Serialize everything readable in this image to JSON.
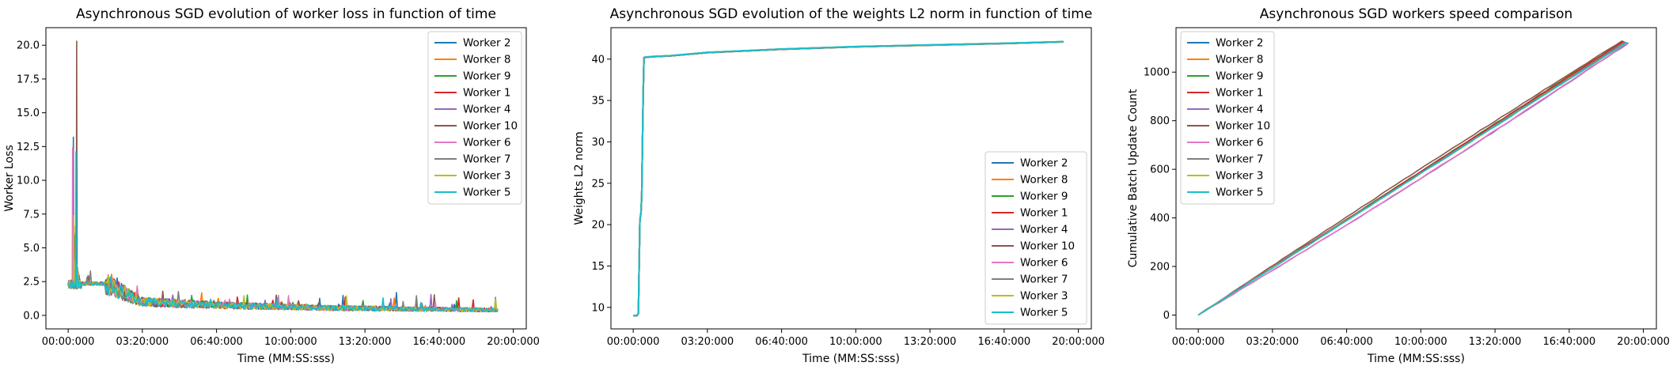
{
  "chart_data": [
    {
      "type": "line",
      "title": "Asynchronous SGD evolution of worker loss in function of time",
      "xlabel": "Time (MM:SS:sss)",
      "ylabel": "Worker Loss",
      "x_ticks": [
        "00:00:000",
        "03:20:000",
        "06:40:000",
        "10:00:000",
        "13:20:000",
        "16:40:000",
        "20:00:000"
      ],
      "y_ticks": [
        "0.0",
        "2.5",
        "5.0",
        "7.5",
        "10.0",
        "12.5",
        "15.0",
        "17.5",
        "20.0"
      ],
      "xlim": [
        -60,
        1235
      ],
      "ylim": [
        -1.0,
        21.3
      ],
      "legend": "top-right",
      "series": [
        {
          "name": "Worker 2",
          "color": "#1f77b4",
          "peak": 13.2,
          "peak_t": 14
        },
        {
          "name": "Worker 8",
          "color": "#ff7f0e",
          "peak": 6.6,
          "peak_t": 16
        },
        {
          "name": "Worker 9",
          "color": "#2ca02c",
          "peak": 5.9,
          "peak_t": 17
        },
        {
          "name": "Worker 1",
          "color": "#d62728",
          "peak": 5.2,
          "peak_t": 18
        },
        {
          "name": "Worker 4",
          "color": "#9467bd",
          "peak": 4.8,
          "peak_t": 19
        },
        {
          "name": "Worker 10",
          "color": "#8c564b",
          "peak": 20.3,
          "peak_t": 23
        },
        {
          "name": "Worker 6",
          "color": "#e377c2",
          "peak": 12.4,
          "peak_t": 12
        },
        {
          "name": "Worker 7",
          "color": "#7f7f7f",
          "peak": 6.1,
          "peak_t": 20
        },
        {
          "name": "Worker 3",
          "color": "#bcbd22",
          "peak": 7.4,
          "peak_t": 15
        },
        {
          "name": "Worker 5",
          "color": "#17becf",
          "peak": 12.1,
          "peak_t": 21
        }
      ],
      "curve": {
        "t_end": 1160,
        "start": 2.3,
        "plateau": 2.35,
        "plateau_end": 100,
        "mid": [
          [
            200,
            1.0
          ],
          [
            400,
            0.75
          ],
          [
            700,
            0.55
          ],
          [
            1160,
            0.4
          ]
        ],
        "noise": 0.35
      }
    },
    {
      "type": "line",
      "title": "Asynchronous SGD evolution of the weights L2 norm in function of time",
      "xlabel": "Time (MM:SS:sss)",
      "ylabel": "Weights L2 norm",
      "x_ticks": [
        "00:00:000",
        "03:20:000",
        "06:40:000",
        "10:00:000",
        "13:20:000",
        "16:40:000",
        "20:00:000"
      ],
      "y_ticks": [
        "10",
        "15",
        "20",
        "25",
        "30",
        "35",
        "40"
      ],
      "xlim": [
        -60,
        1235
      ],
      "ylim": [
        7.4,
        43.8
      ],
      "legend": "lower-right",
      "series": [
        {
          "name": "Worker 2",
          "color": "#1f77b4"
        },
        {
          "name": "Worker 8",
          "color": "#ff7f0e"
        },
        {
          "name": "Worker 9",
          "color": "#2ca02c"
        },
        {
          "name": "Worker 1",
          "color": "#d62728"
        },
        {
          "name": "Worker 4",
          "color": "#9467bd"
        },
        {
          "name": "Worker 10",
          "color": "#8c564b"
        },
        {
          "name": "Worker 6",
          "color": "#e377c2"
        },
        {
          "name": "Worker 7",
          "color": "#7f7f7f"
        },
        {
          "name": "Worker 3",
          "color": "#bcbd22"
        },
        {
          "name": "Worker 5",
          "color": "#17becf"
        }
      ],
      "points": [
        [
          0,
          9.0
        ],
        [
          10,
          9.0
        ],
        [
          14,
          9.3
        ],
        [
          16,
          15.0
        ],
        [
          18,
          20.5
        ],
        [
          21,
          21.5
        ],
        [
          23,
          23.5
        ],
        [
          25,
          30.0
        ],
        [
          27,
          36.0
        ],
        [
          29,
          40.2
        ],
        [
          50,
          40.3
        ],
        [
          100,
          40.4
        ],
        [
          200,
          40.8
        ],
        [
          400,
          41.2
        ],
        [
          600,
          41.5
        ],
        [
          800,
          41.7
        ],
        [
          1000,
          41.9
        ],
        [
          1160,
          42.1
        ]
      ]
    },
    {
      "type": "line",
      "title": "Asynchronous SGD workers speed comparison",
      "xlabel": "Time (MM:SS:sss)",
      "ylabel": "Cumulative Batch Update Count",
      "x_ticks": [
        "00:00:000",
        "03:20:000",
        "06:40:000",
        "10:00:000",
        "13:20:000",
        "16:40:000",
        "20:00:000"
      ],
      "y_ticks": [
        "0",
        "200",
        "400",
        "600",
        "800",
        "1000"
      ],
      "xlim": [
        -60,
        1235
      ],
      "ylim": [
        -57,
        1183
      ],
      "legend": "top-left",
      "series": [
        {
          "name": "Worker 2",
          "color": "#1f77b4",
          "end_t": 1150,
          "end_count": 1125
        },
        {
          "name": "Worker 8",
          "color": "#ff7f0e",
          "end_t": 1148,
          "end_count": 1126
        },
        {
          "name": "Worker 9",
          "color": "#2ca02c",
          "end_t": 1145,
          "end_count": 1128
        },
        {
          "name": "Worker 1",
          "color": "#d62728",
          "end_t": 1147,
          "end_count": 1127
        },
        {
          "name": "Worker 4",
          "color": "#9467bd",
          "end_t": 1160,
          "end_count": 1120
        },
        {
          "name": "Worker 10",
          "color": "#8c564b",
          "end_t": 1143,
          "end_count": 1129
        },
        {
          "name": "Worker 6",
          "color": "#e377c2",
          "end_t": 1158,
          "end_count": 1121
        },
        {
          "name": "Worker 7",
          "color": "#7f7f7f",
          "end_t": 1152,
          "end_count": 1124
        },
        {
          "name": "Worker 3",
          "color": "#bcbd22",
          "end_t": 1155,
          "end_count": 1122
        },
        {
          "name": "Worker 5",
          "color": "#17becf",
          "end_t": 1156,
          "end_count": 1123
        }
      ]
    }
  ]
}
